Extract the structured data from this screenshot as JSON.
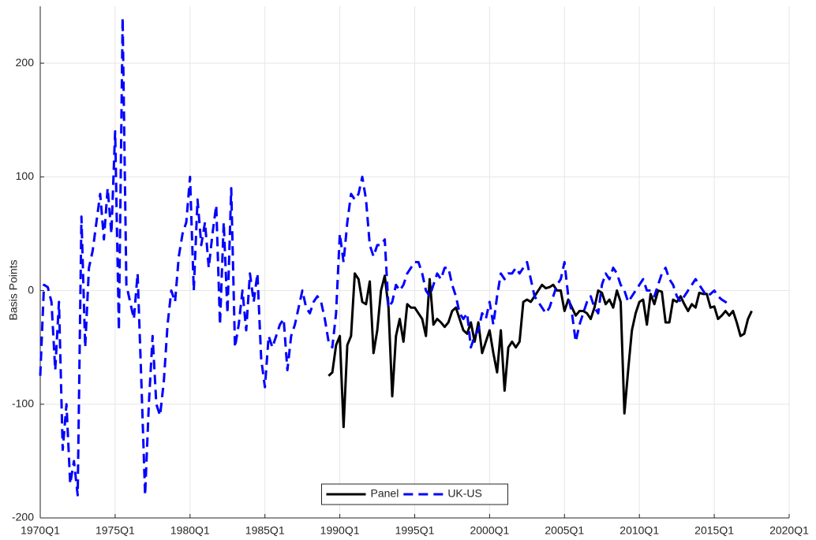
{
  "chart_data": {
    "type": "line",
    "ylabel": "Basis Points",
    "x": [
      "1970Q1",
      "1970Q2",
      "1970Q3",
      "1970Q4",
      "1971Q1",
      "1971Q2",
      "1971Q3",
      "1971Q4",
      "1972Q1",
      "1972Q2",
      "1972Q3",
      "1972Q4",
      "1973Q1",
      "1973Q2",
      "1973Q3",
      "1973Q4",
      "1974Q1",
      "1974Q2",
      "1974Q3",
      "1974Q4",
      "1975Q1",
      "1975Q2",
      "1975Q3",
      "1975Q4",
      "1976Q1",
      "1976Q2",
      "1976Q3",
      "1976Q4",
      "1977Q1",
      "1977Q2",
      "1977Q3",
      "1977Q4",
      "1978Q1",
      "1978Q2",
      "1978Q3",
      "1978Q4",
      "1979Q1",
      "1979Q2",
      "1979Q3",
      "1979Q4",
      "1980Q1",
      "1980Q2",
      "1980Q3",
      "1980Q4",
      "1981Q1",
      "1981Q2",
      "1981Q3",
      "1981Q4",
      "1982Q1",
      "1982Q2",
      "1982Q3",
      "1982Q4",
      "1983Q1",
      "1983Q2",
      "1983Q3",
      "1983Q4",
      "1984Q1",
      "1984Q2",
      "1984Q3",
      "1984Q4",
      "1985Q1",
      "1985Q2",
      "1985Q3",
      "1985Q4",
      "1986Q1",
      "1986Q2",
      "1986Q3",
      "1986Q4",
      "1987Q1",
      "1987Q2",
      "1987Q3",
      "1987Q4",
      "1988Q1",
      "1988Q2",
      "1988Q3",
      "1988Q4",
      "1989Q1",
      "1989Q2",
      "1989Q3",
      "1989Q4",
      "1990Q1",
      "1990Q2",
      "1990Q3",
      "1990Q4",
      "1991Q1",
      "1991Q2",
      "1991Q3",
      "1991Q4",
      "1992Q1",
      "1992Q2",
      "1992Q3",
      "1992Q4",
      "1993Q1",
      "1993Q2",
      "1993Q3",
      "1993Q4",
      "1994Q1",
      "1994Q2",
      "1994Q3",
      "1994Q4",
      "1995Q1",
      "1995Q2",
      "1995Q3",
      "1995Q4",
      "1996Q1",
      "1996Q2",
      "1996Q3",
      "1996Q4",
      "1997Q1",
      "1997Q2",
      "1997Q3",
      "1997Q4",
      "1998Q1",
      "1998Q2",
      "1998Q3",
      "1998Q4",
      "1999Q1",
      "1999Q2",
      "1999Q3",
      "1999Q4",
      "2000Q1",
      "2000Q2",
      "2000Q3",
      "2000Q4",
      "2001Q1",
      "2001Q2",
      "2001Q3",
      "2001Q4",
      "2002Q1",
      "2002Q2",
      "2002Q3",
      "2002Q4",
      "2003Q1",
      "2003Q2",
      "2003Q3",
      "2003Q4",
      "2004Q1",
      "2004Q2",
      "2004Q3",
      "2004Q4",
      "2005Q1",
      "2005Q2",
      "2005Q3",
      "2005Q4",
      "2006Q1",
      "2006Q2",
      "2006Q3",
      "2006Q4",
      "2007Q1",
      "2007Q2",
      "2007Q3",
      "2007Q4",
      "2008Q1",
      "2008Q2",
      "2008Q3",
      "2008Q4",
      "2009Q1",
      "2009Q2",
      "2009Q3",
      "2009Q4",
      "2010Q1",
      "2010Q2",
      "2010Q3",
      "2010Q4",
      "2011Q1",
      "2011Q2",
      "2011Q3",
      "2011Q4",
      "2012Q1",
      "2012Q2",
      "2012Q3",
      "2012Q4",
      "2013Q1",
      "2013Q2",
      "2013Q3",
      "2013Q4",
      "2014Q1",
      "2014Q2",
      "2014Q3",
      "2014Q4",
      "2015Q1",
      "2015Q2",
      "2015Q3",
      "2015Q4",
      "2016Q1",
      "2016Q2",
      "2016Q3",
      "2016Q4",
      "2017Q1",
      "2017Q2",
      "2017Q3"
    ],
    "series": [
      {
        "name": "Panel",
        "color": "#000000",
        "linestyle": "solid",
        "values": [
          null,
          null,
          null,
          null,
          null,
          null,
          null,
          null,
          null,
          null,
          null,
          null,
          null,
          null,
          null,
          null,
          null,
          null,
          null,
          null,
          null,
          null,
          null,
          null,
          null,
          null,
          null,
          null,
          null,
          null,
          null,
          null,
          null,
          null,
          null,
          null,
          null,
          null,
          null,
          null,
          null,
          null,
          null,
          null,
          null,
          null,
          null,
          null,
          null,
          null,
          null,
          null,
          null,
          null,
          null,
          null,
          null,
          null,
          null,
          null,
          null,
          null,
          null,
          null,
          null,
          null,
          null,
          null,
          null,
          null,
          null,
          null,
          null,
          null,
          null,
          null,
          null,
          -75,
          -72,
          -48,
          -40,
          -120,
          -48,
          -40,
          15,
          10,
          -10,
          -12,
          8,
          -55,
          -35,
          0,
          13,
          -15,
          -93,
          -40,
          -25,
          -45,
          -12,
          -15,
          -15,
          -20,
          -25,
          -40,
          10,
          -30,
          -25,
          -28,
          -32,
          -28,
          -18,
          -15,
          -25,
          -35,
          -38,
          -28,
          -45,
          -28,
          -55,
          -45,
          -35,
          -55,
          -72,
          -35,
          -88,
          -50,
          -45,
          -50,
          -45,
          -10,
          -8,
          -10,
          -5,
          0,
          5,
          2,
          3,
          5,
          0,
          0,
          -18,
          -8,
          -15,
          -22,
          -18,
          -18,
          -20,
          -25,
          -15,
          0,
          -2,
          -12,
          -8,
          -15,
          0,
          -10,
          -108,
          -70,
          -35,
          -20,
          -10,
          -8,
          -30,
          -3,
          -12,
          0,
          -1,
          -28,
          -28,
          -8,
          -10,
          -5,
          -12,
          -18,
          -12,
          -15,
          -2,
          -3,
          -3,
          -15,
          -14,
          -25,
          -22,
          -18,
          -22,
          -18,
          -28,
          -40,
          -38,
          -25,
          -18
        ]
      },
      {
        "name": "UK-US",
        "color": "#0000ff",
        "linestyle": "dashed",
        "values": [
          -75,
          5,
          3,
          -10,
          -70,
          -10,
          -140,
          -100,
          -170,
          -150,
          -180,
          65,
          -50,
          20,
          35,
          60,
          85,
          45,
          90,
          50,
          140,
          -35,
          240,
          5,
          -10,
          -25,
          15,
          -80,
          -180,
          -100,
          -40,
          -100,
          -110,
          -80,
          -30,
          0,
          -10,
          30,
          50,
          60,
          100,
          0,
          80,
          40,
          60,
          20,
          50,
          75,
          -30,
          60,
          -20,
          90,
          -50,
          -30,
          0,
          -35,
          15,
          -10,
          15,
          -60,
          -85,
          -40,
          -50,
          -40,
          -30,
          -25,
          -70,
          -40,
          -30,
          -15,
          0,
          -15,
          -20,
          -10,
          -5,
          -10,
          -25,
          -45,
          -50,
          -20,
          50,
          25,
          60,
          85,
          80,
          85,
          100,
          80,
          40,
          30,
          40,
          40,
          45,
          -15,
          -10,
          5,
          0,
          5,
          15,
          20,
          25,
          25,
          15,
          0,
          -5,
          5,
          15,
          10,
          20,
          20,
          5,
          -5,
          -20,
          -25,
          -20,
          -50,
          -40,
          -35,
          -20,
          -25,
          -10,
          -30,
          -5,
          15,
          10,
          15,
          15,
          20,
          15,
          20,
          25,
          10,
          -5,
          -10,
          -15,
          -20,
          -15,
          -5,
          5,
          10,
          25,
          -5,
          -20,
          -45,
          -30,
          -20,
          -10,
          -5,
          -15,
          -20,
          5,
          15,
          10,
          20,
          15,
          5,
          0,
          -10,
          -5,
          0,
          5,
          10,
          0,
          0,
          -5,
          5,
          15,
          20,
          10,
          5,
          -5,
          -10,
          -5,
          0,
          5,
          10,
          5,
          0,
          -5,
          -3,
          0,
          -5,
          -8,
          -10,
          -13,
          null,
          null,
          null,
          null,
          null,
          null
        ]
      }
    ],
    "xlim": [
      "1970Q1",
      "2020Q1"
    ],
    "xticks": [
      "1970Q1",
      "1975Q1",
      "1980Q1",
      "1985Q1",
      "1990Q1",
      "1995Q1",
      "2000Q1",
      "2005Q1",
      "2010Q1",
      "2015Q1",
      "2020Q1"
    ],
    "ylim": [
      -200,
      250
    ],
    "yticks": [
      -200,
      -100,
      0,
      100,
      200
    ],
    "grid": true,
    "legend": "south"
  }
}
